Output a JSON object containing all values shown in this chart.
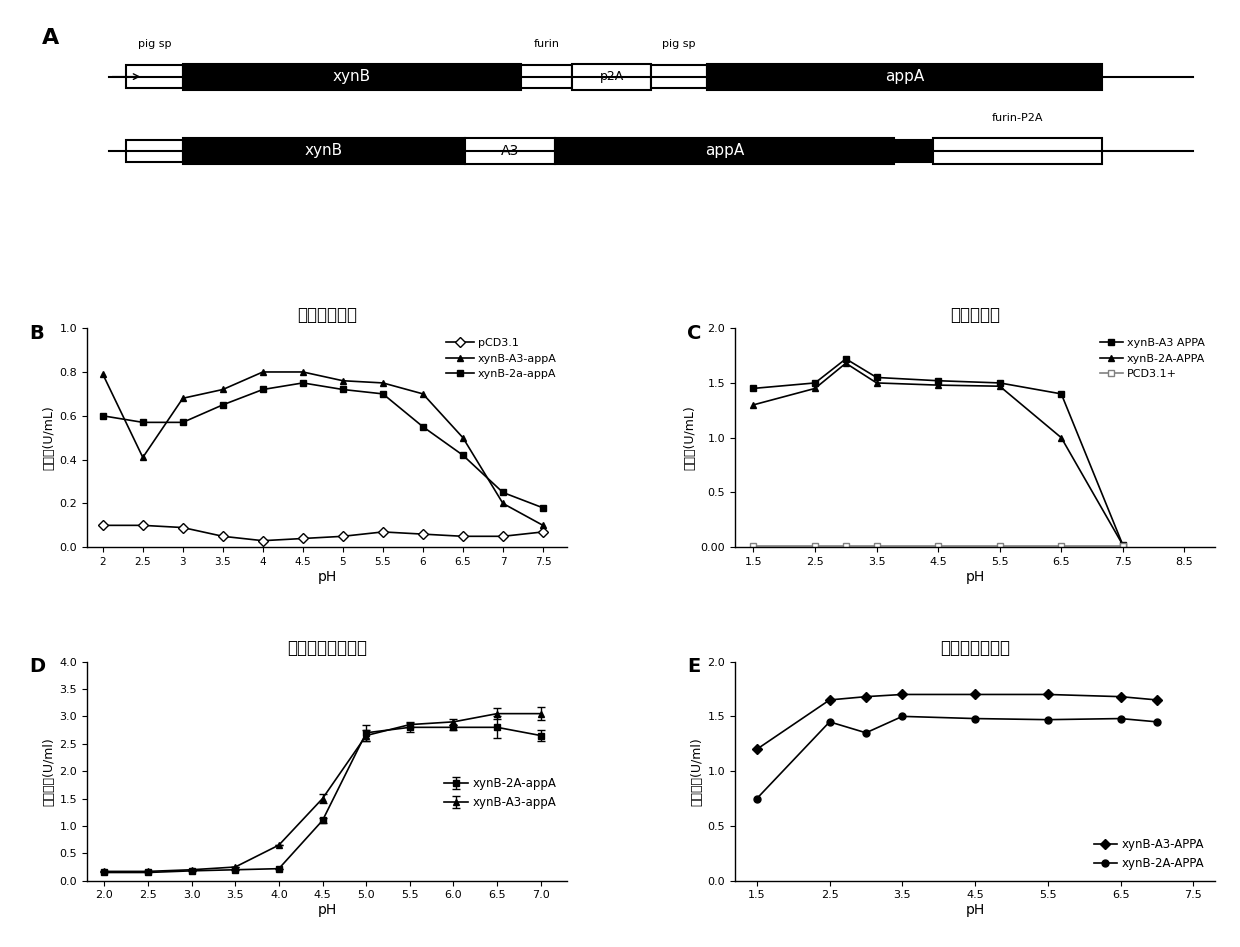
{
  "panel_A": {
    "row1_label": "pig sp",
    "row1_label2": "furin",
    "row1_label3": "pig sp",
    "row1_boxes": [
      "xynB",
      "p2A",
      "appA"
    ],
    "row2_label": "furin-P2A",
    "row2_boxes": [
      "xynB",
      "A3",
      "appA"
    ]
  },
  "panel_B": {
    "title": "木聚糖酶活力",
    "xlabel": "pH",
    "ylabel": "酶活力(U/mL)",
    "ylim": [
      0,
      1.0
    ],
    "yticks": [
      0,
      0.2,
      0.4,
      0.6,
      0.8,
      1.0
    ],
    "xticks": [
      2,
      2.5,
      3,
      3.5,
      4,
      4.5,
      5,
      5.5,
      6,
      6.5,
      7,
      7.5
    ],
    "series": {
      "pCD3.1": {
        "x": [
          2,
          2.5,
          3,
          3.5,
          4,
          4.5,
          5,
          5.5,
          6,
          6.5,
          7,
          7.5
        ],
        "y": [
          0.1,
          0.1,
          0.09,
          0.05,
          0.03,
          0.04,
          0.05,
          0.07,
          0.06,
          0.05,
          0.05,
          0.07
        ],
        "marker": "D",
        "color": "black",
        "linestyle": "-"
      },
      "xynB-A3-appA": {
        "x": [
          2,
          2.5,
          3,
          3.5,
          4,
          4.5,
          5,
          5.5,
          6,
          6.5,
          7,
          7.5
        ],
        "y": [
          0.79,
          0.41,
          0.68,
          0.72,
          0.8,
          0.8,
          0.76,
          0.75,
          0.7,
          0.5,
          0.2,
          0.1
        ],
        "marker": "^",
        "color": "black",
        "linestyle": "-"
      },
      "xynB-2a-appA": {
        "x": [
          2,
          2.5,
          3,
          3.5,
          4,
          4.5,
          5,
          5.5,
          6,
          6.5,
          7,
          7.5
        ],
        "y": [
          0.6,
          0.57,
          0.57,
          0.65,
          0.72,
          0.75,
          0.72,
          0.7,
          0.55,
          0.42,
          0.25,
          0.18
        ],
        "marker": "s",
        "color": "black",
        "linestyle": "-"
      }
    },
    "legend": [
      "pCD3.1",
      "xynB-A3-appA",
      "xynB-2a-appA"
    ]
  },
  "panel_C": {
    "title": "植酸酵活力",
    "xlabel": "pH",
    "ylabel": "酶活力(U/mL)",
    "ylim": [
      0.0,
      2.0
    ],
    "yticks": [
      0.0,
      0.5,
      1.0,
      1.5,
      2.0
    ],
    "xticks": [
      1.5,
      2.5,
      3.5,
      4.5,
      5.5,
      6.5,
      7.5,
      8.5
    ],
    "series": {
      "xynB-A3-APPA": {
        "x": [
          1.5,
          2.5,
          3.0,
          3.5,
          4.5,
          5.5,
          6.5,
          7.5
        ],
        "y": [
          1.45,
          1.5,
          1.72,
          1.55,
          1.52,
          1.5,
          1.4,
          0.02
        ],
        "marker": "s",
        "color": "black",
        "linestyle": "-"
      },
      "xynB-2A-APPA": {
        "x": [
          1.5,
          2.5,
          3.0,
          3.5,
          4.5,
          5.5,
          6.5,
          7.5
        ],
        "y": [
          1.3,
          1.45,
          1.68,
          1.5,
          1.48,
          1.47,
          1.0,
          0.02
        ],
        "marker": "^",
        "color": "black",
        "linestyle": "-"
      },
      "PCD3.1+": {
        "x": [
          1.5,
          2.5,
          3.0,
          3.5,
          4.5,
          5.5,
          6.5,
          7.5
        ],
        "y": [
          0.01,
          0.01,
          0.01,
          0.01,
          0.01,
          0.01,
          0.01,
          0.01
        ],
        "marker": "s",
        "color": "gray",
        "linestyle": "-"
      }
    },
    "legend": [
      "xynB-A3 APPA",
      "xynB-2A-APPA",
      "PCD3.1+"
    ]
  },
  "panel_D": {
    "title": "剩余木聚糖酶活力",
    "xlabel": "pH",
    "ylabel": "剩余酶活(U/ml)",
    "ylim": [
      0.0,
      4.0
    ],
    "yticks": [
      0.0,
      0.5,
      1.0,
      1.5,
      2.0,
      2.5,
      3.0,
      3.5,
      4.0
    ],
    "xticks": [
      2.0,
      2.5,
      3.0,
      3.5,
      4.0,
      4.5,
      5.0,
      5.5,
      6.0,
      6.5,
      7.0
    ],
    "series": {
      "xynB-2A-appA": {
        "x": [
          2.0,
          2.5,
          3.0,
          3.5,
          4.0,
          4.5,
          5.0,
          5.5,
          6.0,
          6.5,
          7.0
        ],
        "y": [
          0.15,
          0.15,
          0.18,
          0.2,
          0.22,
          1.1,
          2.7,
          2.8,
          2.8,
          2.8,
          2.65
        ],
        "marker": "s",
        "color": "black",
        "linestyle": "-",
        "yerr": [
          0.0,
          0.0,
          0.0,
          0.0,
          0.0,
          0.05,
          0.15,
          0.08,
          0.05,
          0.2,
          0.1
        ]
      },
      "xynB-A3-appA": {
        "x": [
          2.0,
          2.5,
          3.0,
          3.5,
          4.0,
          4.5,
          5.0,
          5.5,
          6.0,
          6.5,
          7.0
        ],
        "y": [
          0.17,
          0.17,
          0.2,
          0.25,
          0.65,
          1.5,
          2.65,
          2.85,
          2.9,
          3.05,
          3.05
        ],
        "marker": "^",
        "color": "black",
        "linestyle": "-",
        "yerr": [
          0.0,
          0.0,
          0.0,
          0.0,
          0.0,
          0.08,
          0.1,
          0.05,
          0.05,
          0.1,
          0.12
        ]
      }
    },
    "legend": [
      "xynB-2A-appA",
      "xynB-A3-appA"
    ]
  },
  "panel_E": {
    "title": "剩余植酸酵活力",
    "xlabel": "pH",
    "ylabel": "剩余酶活(U/ml)",
    "ylim": [
      0,
      2
    ],
    "yticks": [
      0,
      0.5,
      1.0,
      1.5,
      2.0
    ],
    "xticks": [
      1.5,
      2.5,
      3.5,
      4.5,
      5.5,
      6.5,
      7.5
    ],
    "series": {
      "xynB-A3-APPA": {
        "x": [
          1.5,
          2.5,
          3.0,
          3.5,
          4.5,
          5.5,
          6.5,
          7.0
        ],
        "y": [
          1.2,
          1.65,
          1.68,
          1.7,
          1.7,
          1.7,
          1.68,
          1.65
        ],
        "marker": "D",
        "color": "black",
        "linestyle": "-"
      },
      "xynB-2A-APPA": {
        "x": [
          1.5,
          2.5,
          3.0,
          3.5,
          4.5,
          5.5,
          6.5,
          7.0
        ],
        "y": [
          0.75,
          1.45,
          1.35,
          1.5,
          1.48,
          1.47,
          1.48,
          1.45
        ],
        "marker": "o",
        "color": "black",
        "linestyle": "-"
      }
    },
    "legend": [
      "xynB-A3-APPA",
      "xynB-2A-APPA"
    ]
  }
}
